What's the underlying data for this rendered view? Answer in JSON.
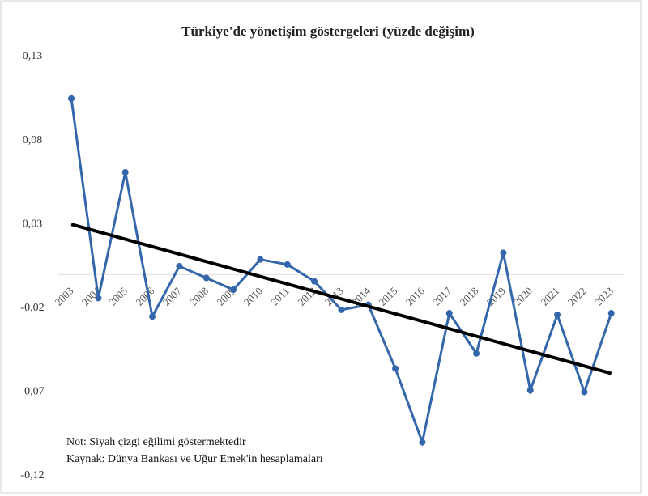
{
  "chart_data": {
    "type": "line",
    "title": "Türkiye'de yönetişim göstergeleri (yüzde değişim)",
    "categories": [
      "2003",
      "2004",
      "2005",
      "2006",
      "2007",
      "2008",
      "2009",
      "2010",
      "2011",
      "2012",
      "2013",
      "2014",
      "2015",
      "2016",
      "2017",
      "2018",
      "2019",
      "2020",
      "2021",
      "2022",
      "2023"
    ],
    "series": [
      {
        "color": "#3366aa",
        "values": [
          0.105,
          -0.014,
          0.061,
          -0.025,
          0.005,
          -0.002,
          -0.009,
          0.009,
          0.006,
          -0.004,
          -0.021,
          -0.018,
          -0.056,
          -0.1,
          -0.023,
          -0.047,
          0.013,
          -0.069,
          -0.024,
          -0.07,
          -0.023
        ]
      }
    ],
    "trendline": {
      "color": "#000000",
      "values": [
        0.03,
        -0.059
      ]
    },
    "ylim": [
      -0.12,
      0.13
    ],
    "yticks": [
      {
        "value": 0.13,
        "label": "0,13"
      },
      {
        "value": 0.08,
        "label": "0,08"
      },
      {
        "value": 0.03,
        "label": "0,03"
      },
      {
        "value": -0.02,
        "label": "-0,02"
      },
      {
        "value": -0.07,
        "label": "-0,07"
      },
      {
        "value": -0.12,
        "label": "-0,12"
      }
    ],
    "annotations": [
      "Not: Siyah çizgi eğilimi göstermektedir",
      "Kaynak: Dünya Bankası ve Uğur Emek'in hesaplamaları"
    ]
  }
}
